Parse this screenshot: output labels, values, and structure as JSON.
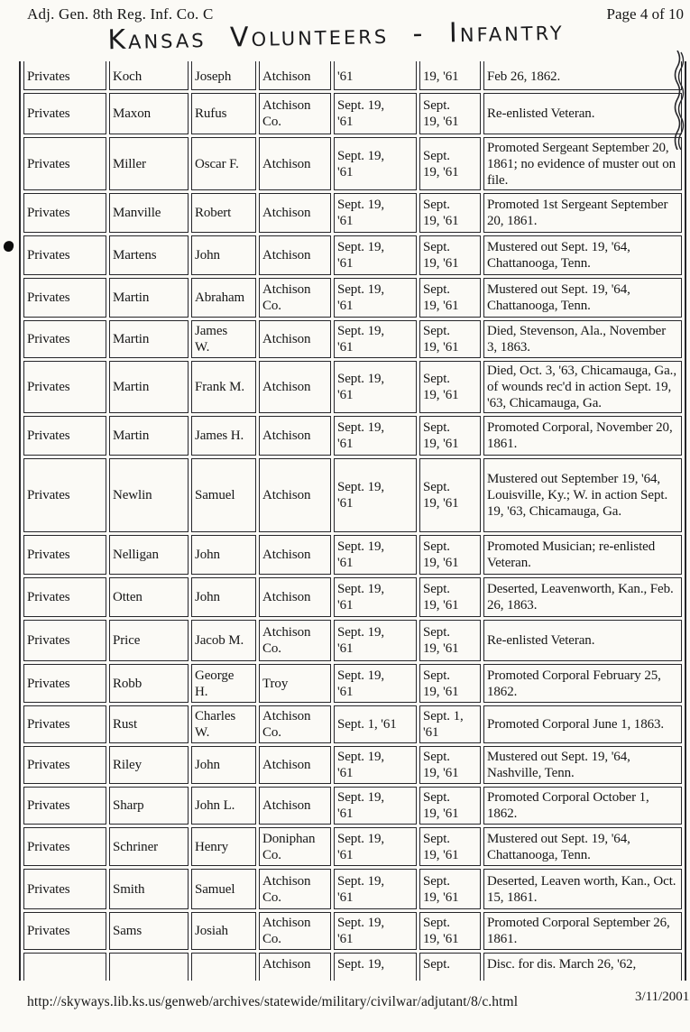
{
  "page": {
    "header_left": "Adj. Gen. 8th Reg. Inf. Co. C",
    "header_right": "Page 4 of 10",
    "handwritten_title": "Kansas Volunteers - Infantry",
    "footer_url": "http://skyways.lib.ks.us/genweb/archives/statewide/military/civilwar/adjutant/8/c.html",
    "footer_date": "3/11/2001"
  },
  "table": {
    "columns": [
      "rank",
      "surname",
      "given-name",
      "residence",
      "muster-in-date",
      "muster-out-date",
      "remarks"
    ],
    "rows": [
      {
        "partial": "top",
        "cells": [
          "Privates",
          "Koch",
          "Joseph",
          "Atchison",
          "'61",
          "19, '61",
          "Feb 26, 1862."
        ]
      },
      {
        "partial": "",
        "cells": [
          "Privates",
          "Maxon",
          "Rufus",
          "Atchison\nCo.",
          "Sept. 19,\n'61",
          "Sept.\n19, '61",
          "Re-enlisted Veteran."
        ]
      },
      {
        "partial": "",
        "cells": [
          "Privates",
          "Miller",
          "Oscar F.",
          "Atchison",
          "Sept. 19,\n'61",
          "Sept.\n19, '61",
          "Promoted Sergeant September 20, 1861; no evidence of muster out on file."
        ]
      },
      {
        "partial": "",
        "cells": [
          "Privates",
          "Manville",
          "Robert",
          "Atchison",
          "Sept. 19,\n'61",
          "Sept.\n19, '61",
          "Promoted 1st Sergeant September 20, 1861."
        ]
      },
      {
        "partial": "",
        "cells": [
          "Privates",
          "Martens",
          "John",
          "Atchison",
          "Sept. 19,\n'61",
          "Sept.\n19, '61",
          "Mustered out Sept. 19, '64, Chattanooga, Tenn."
        ]
      },
      {
        "partial": "",
        "cells": [
          "Privates",
          "Martin",
          "Abraham",
          "Atchison\nCo.",
          "Sept. 19,\n'61",
          "Sept.\n19, '61",
          "Mustered out Sept. 19, '64, Chattanooga, Tenn."
        ]
      },
      {
        "partial": "",
        "cells": [
          "Privates",
          "Martin",
          "James\nW.",
          "Atchison",
          "Sept. 19,\n'61",
          "Sept.\n19, '61",
          "Died, Stevenson, Ala., November 3, 1863."
        ]
      },
      {
        "partial": "",
        "cells": [
          "Privates",
          "Martin",
          "Frank M.",
          "Atchison",
          "Sept. 19,\n'61",
          "Sept.\n19, '61",
          "Died, Oct. 3, '63, Chicamauga, Ga., of wounds rec'd in action Sept. 19, '63, Chicamauga, Ga."
        ]
      },
      {
        "partial": "",
        "cells": [
          "Privates",
          "Martin",
          "James H.",
          "Atchison",
          "Sept. 19,\n'61",
          "Sept.\n19, '61",
          "Promoted Corporal, November 20, 1861."
        ]
      },
      {
        "partial": "",
        "cells": [
          "Privates",
          "Newlin",
          "Samuel",
          "Atchison",
          "Sept. 19,\n'61",
          "Sept.\n19, '61",
          "Mustered out September 19, '64, Louisville, Ky.; W. in action Sept. 19, '63, Chicamauga, Ga."
        ]
      },
      {
        "partial": "",
        "cells": [
          "Privates",
          "Nelligan",
          "John",
          "Atchison",
          "Sept. 19,\n'61",
          "Sept.\n19, '61",
          "Promoted Musician; re-enlisted Veteran."
        ]
      },
      {
        "partial": "",
        "cells": [
          "Privates",
          "Otten",
          "John",
          "Atchison",
          "Sept. 19,\n'61",
          "Sept.\n19, '61",
          "Deserted, Leavenworth, Kan., Feb. 26, 1863."
        ]
      },
      {
        "partial": "",
        "cells": [
          "Privates",
          "Price",
          "Jacob M.",
          "Atchison\nCo.",
          "Sept. 19,\n'61",
          "Sept.\n19, '61",
          "Re-enlisted Veteran."
        ]
      },
      {
        "partial": "",
        "cells": [
          "Privates",
          "Robb",
          "George\nH.",
          "Troy",
          "Sept. 19,\n'61",
          "Sept.\n19, '61",
          "Promoted Corporal February 25, 1862."
        ]
      },
      {
        "partial": "",
        "cells": [
          "Privates",
          "Rust",
          "Charles\nW.",
          "Atchison\nCo.",
          "Sept. 1, '61",
          "Sept. 1,\n'61",
          "Promoted Corporal June 1, 1863."
        ]
      },
      {
        "partial": "",
        "cells": [
          "Privates",
          "Riley",
          "John",
          "Atchison",
          "Sept. 19,\n'61",
          "Sept.\n19, '61",
          "Mustered out Sept. 19, '64, Nashville, Tenn."
        ]
      },
      {
        "partial": "",
        "cells": [
          "Privates",
          "Sharp",
          "John L.",
          "Atchison",
          "Sept. 19,\n'61",
          "Sept.\n19, '61",
          "Promoted Corporal October 1, 1862."
        ]
      },
      {
        "partial": "",
        "cells": [
          "Privates",
          "Schriner",
          "Henry",
          "Doniphan\nCo.",
          "Sept. 19,\n'61",
          "Sept.\n19, '61",
          "Mustered out Sept. 19, '64, Chattanooga, Tenn."
        ]
      },
      {
        "partial": "",
        "cells": [
          "Privates",
          "Smith",
          "Samuel",
          "Atchison\nCo.",
          "Sept. 19,\n'61",
          "Sept.\n19, '61",
          "Deserted, Leaven worth, Kan., Oct. 15, 1861."
        ]
      },
      {
        "partial": "",
        "cells": [
          "Privates",
          "Sams",
          "Josiah",
          "Atchison\nCo.",
          "Sept. 19,\n'61",
          "Sept.\n19, '61",
          "Promoted Corporal September 26, 1861."
        ]
      },
      {
        "partial": "bottom",
        "cells": [
          "",
          "",
          "",
          "Atchison",
          "Sept. 19,",
          "Sept.",
          "Disc. for dis. March 26, '62,"
        ]
      }
    ]
  },
  "artifacts": {
    "punch_dot": "black ink dot in left margin",
    "squiggle": "wavy scanned right table edge"
  }
}
